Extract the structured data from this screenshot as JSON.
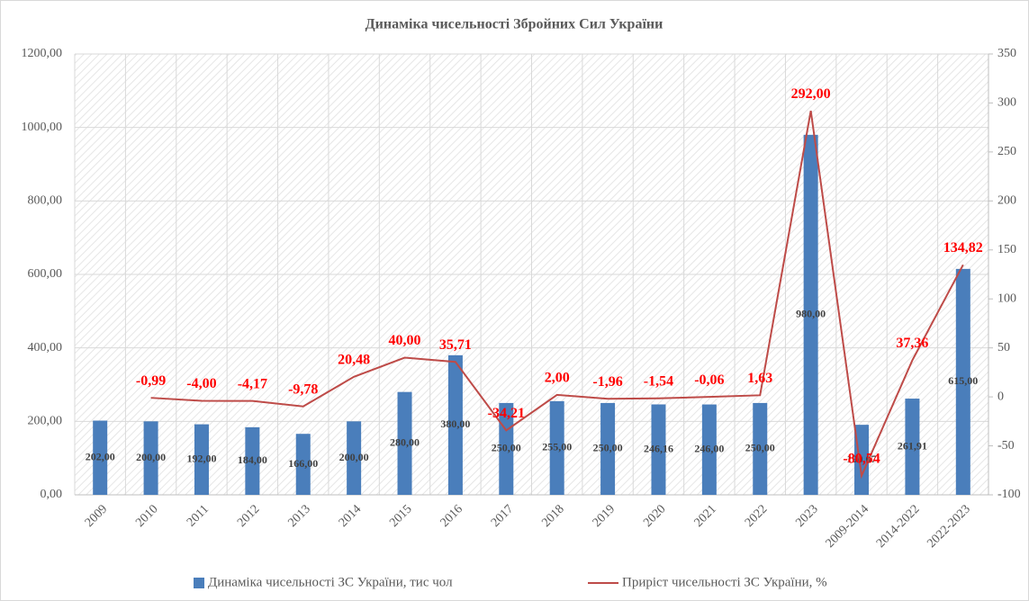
{
  "chart_data": {
    "type": "bar-line",
    "title": "Динаміка чисельності Збройних Сил України",
    "categories": [
      "2009",
      "2010",
      "2011",
      "2012",
      "2013",
      "2014",
      "2015",
      "2016",
      "2017",
      "2018",
      "2019",
      "2020",
      "2021",
      "2022",
      "2023",
      "2009-2014",
      "2014-2022",
      "2022-2023"
    ],
    "series": [
      {
        "name": "Динаміка чисельності ЗС України, тис чол",
        "color": "#4a7ebb",
        "type": "bar",
        "values": [
          202,
          200,
          192,
          184,
          166,
          200,
          280,
          380,
          250,
          255,
          250,
          246.16,
          246,
          250,
          980,
          190.67,
          261.91,
          615
        ],
        "value_labels": [
          "202,00",
          "200,00",
          "192,00",
          "184,00",
          "166,00",
          "200,00",
          "280,00",
          "380,00",
          "250,00",
          "255,00",
          "250,00",
          "246,16",
          "246,00",
          "250,00",
          "980,00",
          "190,67",
          "261,91",
          "615,00"
        ]
      },
      {
        "name": "Приріст чисельності ЗС України, %",
        "color": "#be4b48",
        "type": "line",
        "axis": "y2",
        "values": [
          null,
          -0.99,
          -4.0,
          -4.17,
          -9.78,
          20.48,
          40.0,
          35.71,
          -34.21,
          2.0,
          -1.96,
          -1.54,
          -0.06,
          1.63,
          292.0,
          -80.54,
          37.36,
          134.82
        ],
        "value_labels": [
          null,
          "-0,99",
          "-4,00",
          "-4,17",
          "-9,78",
          "20,48",
          "40,00",
          "35,71",
          "-34,21",
          "2,00",
          "-1,96",
          "-1,54",
          "-0,06",
          "1,63",
          "292,00",
          "-80,54",
          "37,36",
          "134,82"
        ]
      }
    ],
    "ylim": [
      0,
      1200
    ],
    "yticks": [
      {
        "value": 0,
        "label": "0,00"
      },
      {
        "value": 200,
        "label": "200,00"
      },
      {
        "value": 400,
        "label": "400,00"
      },
      {
        "value": 600,
        "label": "600,00"
      },
      {
        "value": 800,
        "label": "800,00"
      },
      {
        "value": 1000,
        "label": "1000,00"
      },
      {
        "value": 1200,
        "label": "1200,00"
      }
    ],
    "y2lim": [
      -100,
      350
    ],
    "y2ticks": [
      -100,
      -50,
      0,
      50,
      100,
      150,
      200,
      250,
      300,
      350
    ],
    "grid": true,
    "legend": "bottom"
  }
}
